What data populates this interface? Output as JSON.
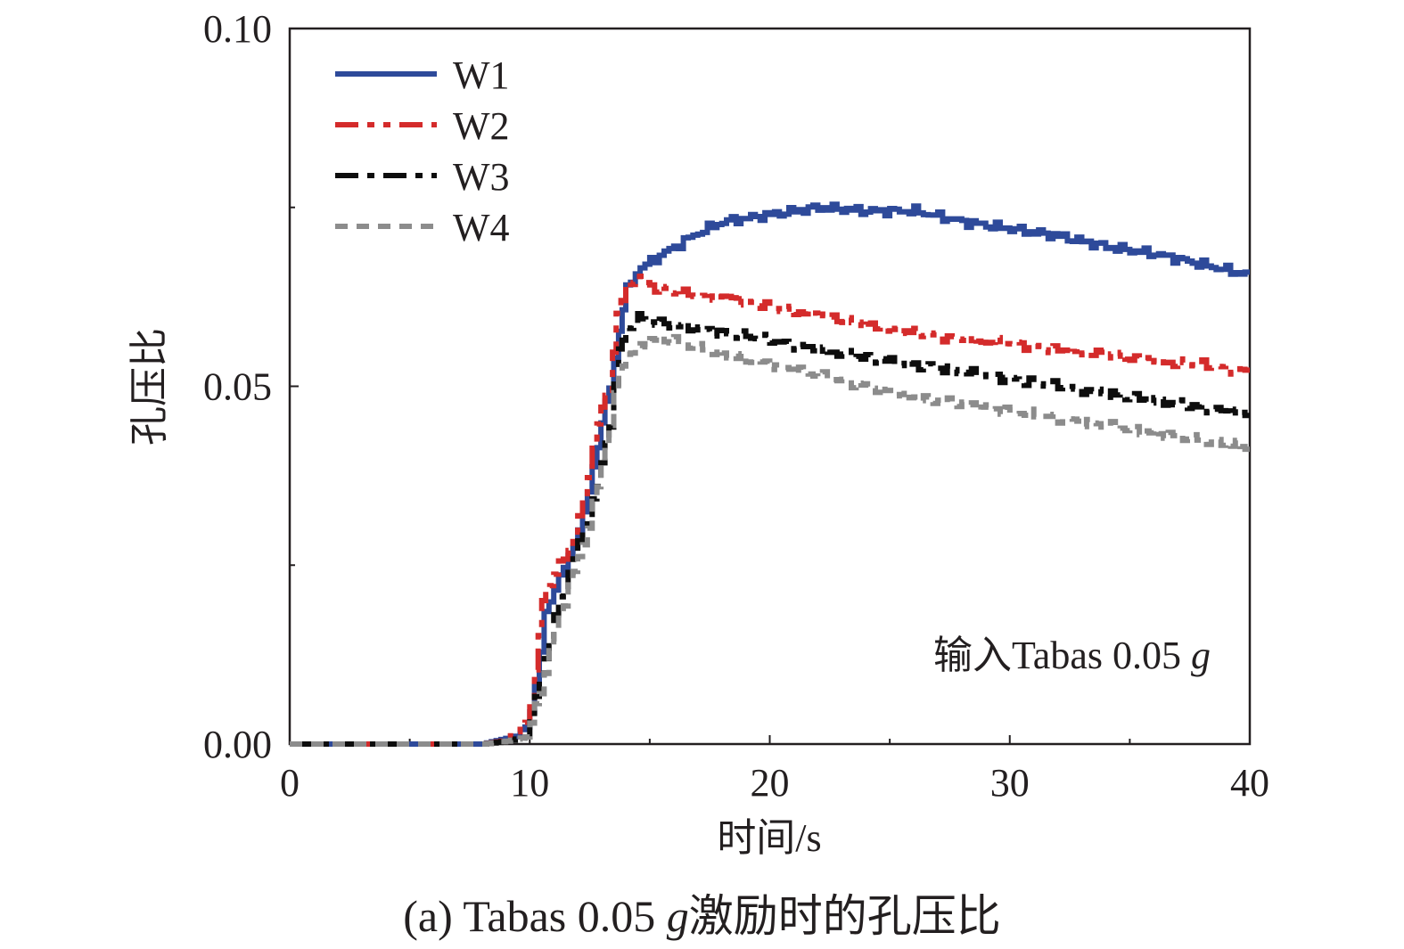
{
  "chart_data": {
    "type": "line",
    "xlabel": "时间/s",
    "ylabel": "孔压比",
    "xlim": [
      0,
      40
    ],
    "ylim": [
      0,
      0.1
    ],
    "x_ticks": [
      "0",
      "10",
      "20",
      "30",
      "40"
    ],
    "y_ticks": [
      "0.00",
      "0.05",
      "0.10"
    ],
    "annotation": {
      "text": "输入Tabas 0.05 ",
      "italic": "g"
    },
    "legend_position": "top-left",
    "series": [
      {
        "name": "W1",
        "color": "#2e4a9a",
        "dash": "solid",
        "points": [
          [
            0,
            0
          ],
          [
            5,
            0
          ],
          [
            8,
            0
          ],
          [
            9,
            0.0008
          ],
          [
            9.8,
            0.002
          ],
          [
            10.2,
            0.008
          ],
          [
            10.6,
            0.018
          ],
          [
            11,
            0.022
          ],
          [
            11.6,
            0.026
          ],
          [
            12.2,
            0.032
          ],
          [
            12.8,
            0.042
          ],
          [
            13.3,
            0.05
          ],
          [
            13.7,
            0.058
          ],
          [
            14,
            0.0635
          ],
          [
            14.4,
            0.066
          ],
          [
            15,
            0.0675
          ],
          [
            16,
            0.0695
          ],
          [
            17,
            0.0715
          ],
          [
            18,
            0.073
          ],
          [
            20,
            0.074
          ],
          [
            22,
            0.075
          ],
          [
            24,
            0.0745
          ],
          [
            26,
            0.0745
          ],
          [
            28,
            0.073
          ],
          [
            30,
            0.072
          ],
          [
            32,
            0.071
          ],
          [
            34,
            0.0695
          ],
          [
            36,
            0.0685
          ],
          [
            38,
            0.067
          ],
          [
            40,
            0.0655
          ]
        ]
      },
      {
        "name": "W2",
        "color": "#d42b2b",
        "dash": "dashdotdot",
        "points": [
          [
            0,
            0
          ],
          [
            5,
            0
          ],
          [
            8,
            0
          ],
          [
            9,
            0.0005
          ],
          [
            9.8,
            0.003
          ],
          [
            10.2,
            0.01
          ],
          [
            10.5,
            0.02
          ],
          [
            11,
            0.024
          ],
          [
            11.6,
            0.027
          ],
          [
            12.2,
            0.034
          ],
          [
            12.8,
            0.045
          ],
          [
            13.3,
            0.05
          ],
          [
            13.6,
            0.06
          ],
          [
            14,
            0.064
          ],
          [
            14.4,
            0.0655
          ],
          [
            15,
            0.064
          ],
          [
            16,
            0.063
          ],
          [
            18,
            0.0625
          ],
          [
            20,
            0.061
          ],
          [
            22,
            0.06
          ],
          [
            24,
            0.0585
          ],
          [
            26,
            0.0575
          ],
          [
            28,
            0.0565
          ],
          [
            30,
            0.056
          ],
          [
            32,
            0.055
          ],
          [
            34,
            0.0545
          ],
          [
            36,
            0.0535
          ],
          [
            38,
            0.053
          ],
          [
            40,
            0.052
          ]
        ]
      },
      {
        "name": "W3",
        "color": "#0d0d0d",
        "dash": "dashdot",
        "points": [
          [
            0,
            0
          ],
          [
            5,
            0
          ],
          [
            8,
            0
          ],
          [
            9,
            0.0004
          ],
          [
            9.8,
            0.001
          ],
          [
            10.2,
            0.006
          ],
          [
            10.6,
            0.012
          ],
          [
            11,
            0.018
          ],
          [
            11.6,
            0.024
          ],
          [
            12.2,
            0.03
          ],
          [
            12.8,
            0.036
          ],
          [
            13.3,
            0.045
          ],
          [
            13.7,
            0.055
          ],
          [
            14,
            0.058
          ],
          [
            14.5,
            0.0595
          ],
          [
            15,
            0.059
          ],
          [
            16,
            0.0585
          ],
          [
            18,
            0.0575
          ],
          [
            20,
            0.0565
          ],
          [
            22,
            0.055
          ],
          [
            24,
            0.054
          ],
          [
            26,
            0.053
          ],
          [
            28,
            0.052
          ],
          [
            30,
            0.051
          ],
          [
            32,
            0.05
          ],
          [
            34,
            0.049
          ],
          [
            36,
            0.048
          ],
          [
            38,
            0.047
          ],
          [
            40,
            0.046
          ]
        ]
      },
      {
        "name": "W4",
        "color": "#8c8c8c",
        "dash": "dash",
        "points": [
          [
            0,
            0
          ],
          [
            5,
            0
          ],
          [
            8,
            0
          ],
          [
            9,
            0.0004
          ],
          [
            9.8,
            0.001
          ],
          [
            10.2,
            0.005
          ],
          [
            10.6,
            0.01
          ],
          [
            11,
            0.016
          ],
          [
            11.6,
            0.022
          ],
          [
            12.2,
            0.028
          ],
          [
            12.8,
            0.036
          ],
          [
            13.3,
            0.045
          ],
          [
            13.7,
            0.052
          ],
          [
            14,
            0.0545
          ],
          [
            15,
            0.0565
          ],
          [
            16,
            0.0565
          ],
          [
            17,
            0.0555
          ],
          [
            18,
            0.0545
          ],
          [
            20,
            0.053
          ],
          [
            22,
            0.0515
          ],
          [
            24,
            0.05
          ],
          [
            26,
            0.0485
          ],
          [
            28,
            0.0475
          ],
          [
            30,
            0.0465
          ],
          [
            32,
            0.0455
          ],
          [
            34,
            0.0445
          ],
          [
            36,
            0.0435
          ],
          [
            38,
            0.0425
          ],
          [
            40,
            0.0415
          ]
        ]
      }
    ]
  },
  "caption": {
    "prefix": "(a) Tabas 0.05 ",
    "italic": "g",
    "suffix": "激励时的孔压比"
  }
}
